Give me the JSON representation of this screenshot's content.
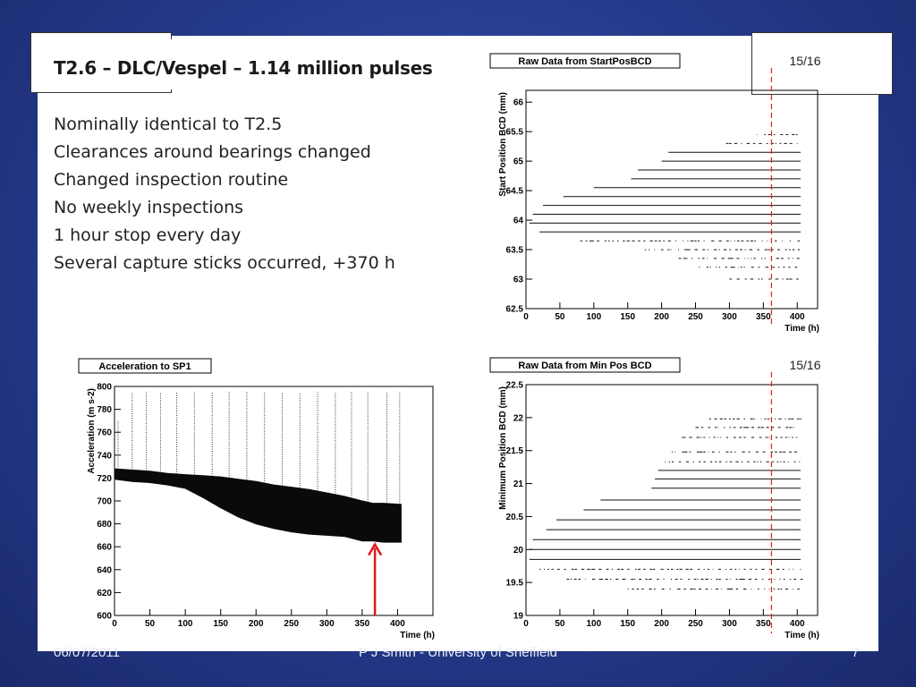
{
  "slide": {
    "title": "T2.6 – DLC/Vespel – 1.14 million pulses",
    "bullets": [
      "Nominally identical to T2.5",
      "Clearances around bearings changed",
      "Changed inspection routine",
      "No weekly inspections",
      "1 hour stop every day",
      "Several capture sticks occurred, +370 h"
    ]
  },
  "footer": {
    "date": "06/07/2011",
    "author": "P J Smith - University of Sheffield",
    "page": "7"
  },
  "colors": {
    "background": "#24398a",
    "marker_line": "#dd2222",
    "arrow": "#e01818"
  },
  "chart_data": [
    {
      "id": "startpos",
      "type": "scatter",
      "title": "Raw Data from StartPosBCD",
      "page_label": "15/16",
      "xlabel": "Time (h)",
      "ylabel": "Start Position BCD (mm)",
      "xlim": [
        0,
        430
      ],
      "ylim": [
        62.5,
        66.2
      ],
      "xticks": [
        0,
        50,
        100,
        150,
        200,
        250,
        300,
        350,
        400
      ],
      "yticks": [
        62.5,
        63,
        63.5,
        64,
        64.5,
        65,
        65.5,
        66
      ],
      "ytick_labels": [
        "62.5",
        "63",
        "63.5",
        "64",
        "64.5",
        "65",
        "65.5",
        "66"
      ],
      "vline_x": 362,
      "levels": [
        {
          "y": 65.45,
          "x0": 340,
          "x1": 400,
          "sparse": true
        },
        {
          "y": 65.3,
          "x0": 295,
          "x1": 400,
          "sparse": true
        },
        {
          "y": 65.15,
          "x0": 210,
          "x1": 405,
          "sparse": false
        },
        {
          "y": 65.0,
          "x0": 200,
          "x1": 405,
          "sparse": false
        },
        {
          "y": 64.85,
          "x0": 165,
          "x1": 405,
          "sparse": false
        },
        {
          "y": 64.7,
          "x0": 155,
          "x1": 405,
          "sparse": false
        },
        {
          "y": 64.55,
          "x0": 100,
          "x1": 405,
          "sparse": false
        },
        {
          "y": 64.4,
          "x0": 55,
          "x1": 405,
          "sparse": false
        },
        {
          "y": 64.25,
          "x0": 25,
          "x1": 405,
          "sparse": false
        },
        {
          "y": 64.1,
          "x0": 10,
          "x1": 405,
          "sparse": false
        },
        {
          "y": 63.95,
          "x0": 5,
          "x1": 405,
          "sparse": false
        },
        {
          "y": 63.8,
          "x0": 20,
          "x1": 405,
          "sparse": false
        },
        {
          "y": 63.65,
          "x0": 80,
          "x1": 405,
          "sparse": true
        },
        {
          "y": 63.5,
          "x0": 175,
          "x1": 405,
          "sparse": true
        },
        {
          "y": 63.35,
          "x0": 225,
          "x1": 405,
          "sparse": true
        },
        {
          "y": 63.2,
          "x0": 255,
          "x1": 405,
          "sparse": true
        },
        {
          "y": 63.0,
          "x0": 300,
          "x1": 405,
          "sparse": true
        }
      ]
    },
    {
      "id": "accel",
      "type": "scatter",
      "title": "Acceleration to SP1",
      "xlabel": "Time (h)",
      "ylabel": "Acceleration (m s-2)",
      "xlim": [
        0,
        450
      ],
      "ylim": [
        600,
        800
      ],
      "xticks": [
        0,
        50,
        100,
        150,
        200,
        250,
        300,
        350,
        400
      ],
      "yticks": [
        600,
        620,
        640,
        660,
        680,
        700,
        720,
        740,
        760,
        780,
        800
      ],
      "ytick_labels": [
        "600",
        "620",
        "640",
        "660",
        "680",
        "700",
        "720",
        "740",
        "760",
        "780",
        "800"
      ],
      "band": {
        "x": [
          0,
          25,
          50,
          75,
          100,
          125,
          150,
          175,
          200,
          225,
          250,
          275,
          300,
          325,
          350,
          365,
          380,
          405
        ],
        "upper": [
          728,
          727,
          726,
          724,
          723,
          722,
          721,
          719,
          717,
          714,
          712,
          710,
          707,
          704,
          700,
          698,
          698,
          697
        ],
        "lower": [
          719,
          717,
          716,
          714,
          711,
          703,
          694,
          686,
          680,
          676,
          673,
          671,
          670,
          669,
          665,
          665,
          664,
          664
        ]
      },
      "spikes": [
        {
          "x": 5,
          "y": 770
        },
        {
          "x": 25,
          "y": 795
        },
        {
          "x": 45,
          "y": 795
        },
        {
          "x": 65,
          "y": 795
        },
        {
          "x": 88,
          "y": 795
        },
        {
          "x": 113,
          "y": 795
        },
        {
          "x": 138,
          "y": 795
        },
        {
          "x": 162,
          "y": 795
        },
        {
          "x": 187,
          "y": 795
        },
        {
          "x": 212,
          "y": 795
        },
        {
          "x": 237,
          "y": 795
        },
        {
          "x": 262,
          "y": 795
        },
        {
          "x": 287,
          "y": 795
        },
        {
          "x": 312,
          "y": 795
        },
        {
          "x": 335,
          "y": 795
        },
        {
          "x": 358,
          "y": 795
        },
        {
          "x": 385,
          "y": 795
        },
        {
          "x": 403,
          "y": 795
        }
      ],
      "arrow": {
        "x": 368,
        "y_from": 600,
        "y_to": 662
      }
    },
    {
      "id": "minpos",
      "type": "scatter",
      "title": "Raw Data from Min Pos BCD",
      "page_label": "15/16",
      "xlabel": "Time (h)",
      "ylabel": "Minimum Position BCD (mm)",
      "xlim": [
        0,
        430
      ],
      "ylim": [
        19,
        22.5
      ],
      "xticks": [
        0,
        50,
        100,
        150,
        200,
        250,
        300,
        350,
        400
      ],
      "yticks": [
        19,
        19.5,
        20,
        20.5,
        21,
        21.5,
        22,
        22.5
      ],
      "ytick_labels": [
        "19",
        "19.5",
        "20",
        "20.5",
        "21",
        "21.5",
        "22",
        "22.5"
      ],
      "vline_x": 362,
      "levels": [
        {
          "y": 21.98,
          "x0": 270,
          "x1": 405,
          "sparse": true
        },
        {
          "y": 21.85,
          "x0": 250,
          "x1": 405,
          "sparse": true
        },
        {
          "y": 21.7,
          "x0": 230,
          "x1": 405,
          "sparse": true
        },
        {
          "y": 21.48,
          "x0": 215,
          "x1": 405,
          "sparse": true
        },
        {
          "y": 21.33,
          "x0": 205,
          "x1": 405,
          "sparse": true
        },
        {
          "y": 21.2,
          "x0": 195,
          "x1": 405,
          "sparse": false
        },
        {
          "y": 21.07,
          "x0": 190,
          "x1": 405,
          "sparse": false
        },
        {
          "y": 20.93,
          "x0": 185,
          "x1": 405,
          "sparse": false
        },
        {
          "y": 20.75,
          "x0": 110,
          "x1": 405,
          "sparse": false
        },
        {
          "y": 20.6,
          "x0": 85,
          "x1": 405,
          "sparse": false
        },
        {
          "y": 20.45,
          "x0": 45,
          "x1": 405,
          "sparse": false
        },
        {
          "y": 20.3,
          "x0": 30,
          "x1": 405,
          "sparse": false
        },
        {
          "y": 20.15,
          "x0": 10,
          "x1": 405,
          "sparse": false
        },
        {
          "y": 20.0,
          "x0": 5,
          "x1": 405,
          "sparse": false
        },
        {
          "y": 19.85,
          "x0": 5,
          "x1": 405,
          "sparse": false
        },
        {
          "y": 19.7,
          "x0": 20,
          "x1": 405,
          "sparse": true
        },
        {
          "y": 19.55,
          "x0": 60,
          "x1": 405,
          "sparse": true
        },
        {
          "y": 19.4,
          "x0": 150,
          "x1": 405,
          "sparse": true
        }
      ]
    }
  ]
}
